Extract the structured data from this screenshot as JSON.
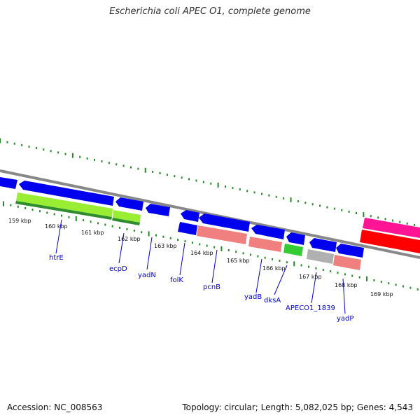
{
  "title": "Escherichia coli APEC O1, complete genome",
  "footer": {
    "accession": "Accession: NC_008563",
    "summary": "Topology: circular; Length: 5,082,025 bp; Genes: 4,543"
  },
  "colors": {
    "cds": "#0000ee",
    "rna": "#f08080",
    "green": "#33cc33",
    "grey": "#b0b0b0",
    "pink": "#ff1493",
    "red": "#ff0000",
    "lime": "#99ee33",
    "darkgreen": "#2e8b2e",
    "label": "#0000cc",
    "backbone": "#888888",
    "tick": "#228b22"
  },
  "ticks": [
    {
      "label": "159 kbp"
    },
    {
      "label": "160 kbp"
    },
    {
      "label": "161 kbp"
    },
    {
      "label": "162 kbp"
    },
    {
      "label": "163 kbp"
    },
    {
      "label": "164 kbp"
    },
    {
      "label": "165 kbp"
    },
    {
      "label": "166 kbp"
    },
    {
      "label": "167 kbp"
    },
    {
      "label": "168 kbp"
    },
    {
      "label": "169 kbp"
    }
  ],
  "gene_labels": [
    {
      "name": "htrE"
    },
    {
      "name": "ecpD"
    },
    {
      "name": "yadN"
    },
    {
      "name": "folK"
    },
    {
      "name": "pcnB"
    },
    {
      "name": "yadB"
    },
    {
      "name": "dksA"
    },
    {
      "name": "APECO1_1839"
    },
    {
      "name": "yadP"
    }
  ]
}
